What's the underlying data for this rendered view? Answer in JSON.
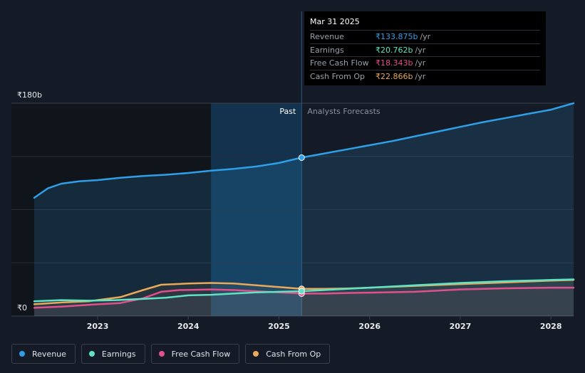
{
  "tooltip": {
    "date": "Mar 31 2025",
    "rows": [
      {
        "label": "Revenue",
        "value": "₹133.875b",
        "unit": "/yr",
        "color": "#2f9fe8"
      },
      {
        "label": "Earnings",
        "value": "₹20.762b",
        "unit": "/yr",
        "color": "#5fe3c4"
      },
      {
        "label": "Free Cash Flow",
        "value": "₹18.343b",
        "unit": "/yr",
        "color": "#e0508a"
      },
      {
        "label": "Cash From Op",
        "value": "₹22.866b",
        "unit": "/yr",
        "color": "#e8a95a"
      }
    ]
  },
  "legend": [
    {
      "label": "Revenue",
      "color": "#2f9fe8"
    },
    {
      "label": "Earnings",
      "color": "#5fe3c4"
    },
    {
      "label": "Free Cash Flow",
      "color": "#e0508a"
    },
    {
      "label": "Cash From Op",
      "color": "#e8a95a"
    }
  ],
  "chart_data": {
    "type": "line",
    "ylim": [
      0,
      180
    ],
    "y_tick_labels": [
      {
        "value": 180,
        "label": "₹180b"
      },
      {
        "value": 0,
        "label": "₹0"
      }
    ],
    "xlim": [
      2022.3,
      2028.25
    ],
    "x_tick_labels": [
      "2023",
      "2024",
      "2025",
      "2026",
      "2027",
      "2028"
    ],
    "x_tick_values": [
      2023,
      2024,
      2025,
      2026,
      2027,
      2028
    ],
    "past_label": "Past",
    "forecast_label": "Analysts Forecasts",
    "divider_x": 2025.25,
    "highlight_start_x": 2024.25,
    "grid": true,
    "series": [
      {
        "name": "Revenue",
        "color": "#2f9fe8",
        "points": [
          [
            2022.3,
            100
          ],
          [
            2022.45,
            108
          ],
          [
            2022.6,
            112
          ],
          [
            2022.8,
            114
          ],
          [
            2023.0,
            115
          ],
          [
            2023.25,
            117
          ],
          [
            2023.5,
            118.5
          ],
          [
            2023.75,
            119.5
          ],
          [
            2024.0,
            121
          ],
          [
            2024.25,
            123
          ],
          [
            2024.5,
            124.5
          ],
          [
            2024.75,
            126.5
          ],
          [
            2025.0,
            129.5
          ],
          [
            2025.25,
            134
          ],
          [
            2025.5,
            137.5
          ],
          [
            2025.75,
            141
          ],
          [
            2026.0,
            144.5
          ],
          [
            2026.25,
            148
          ],
          [
            2026.5,
            152
          ],
          [
            2026.75,
            156
          ],
          [
            2027.0,
            160
          ],
          [
            2027.25,
            164
          ],
          [
            2027.5,
            167.5
          ],
          [
            2027.75,
            171
          ],
          [
            2028.0,
            174.5
          ],
          [
            2028.25,
            180
          ]
        ]
      },
      {
        "name": "Earnings",
        "color": "#5fe3c4",
        "points": [
          [
            2022.3,
            12.5
          ],
          [
            2022.6,
            13.5
          ],
          [
            2022.9,
            13
          ],
          [
            2023.2,
            13.5
          ],
          [
            2023.5,
            14.5
          ],
          [
            2023.75,
            15.5
          ],
          [
            2024.0,
            17.5
          ],
          [
            2024.25,
            18
          ],
          [
            2024.5,
            19
          ],
          [
            2024.75,
            20
          ],
          [
            2025.0,
            20.5
          ],
          [
            2025.25,
            21
          ],
          [
            2025.5,
            22
          ],
          [
            2025.75,
            23
          ],
          [
            2026.0,
            24
          ],
          [
            2026.5,
            26
          ],
          [
            2027.0,
            28
          ],
          [
            2027.5,
            29.5
          ],
          [
            2028.0,
            30.5
          ],
          [
            2028.25,
            31
          ]
        ]
      },
      {
        "name": "Free Cash Flow",
        "color": "#e0508a",
        "points": [
          [
            2022.3,
            7
          ],
          [
            2022.6,
            8
          ],
          [
            2022.9,
            9.5
          ],
          [
            2023.25,
            11
          ],
          [
            2023.5,
            15
          ],
          [
            2023.7,
            20.5
          ],
          [
            2023.9,
            22
          ],
          [
            2024.25,
            22.5
          ],
          [
            2024.5,
            22
          ],
          [
            2024.75,
            21
          ],
          [
            2025.0,
            20
          ],
          [
            2025.25,
            19
          ],
          [
            2025.5,
            19
          ],
          [
            2025.75,
            19.5
          ],
          [
            2026.0,
            19.8
          ],
          [
            2026.5,
            20.5
          ],
          [
            2026.75,
            21.5
          ],
          [
            2027.0,
            22.5
          ],
          [
            2027.5,
            23.5
          ],
          [
            2028.0,
            24
          ],
          [
            2028.25,
            24
          ]
        ]
      },
      {
        "name": "Cash From Op",
        "color": "#e8a95a",
        "points": [
          [
            2022.3,
            10
          ],
          [
            2022.6,
            11.5
          ],
          [
            2022.9,
            12.5
          ],
          [
            2023.25,
            16
          ],
          [
            2023.5,
            22
          ],
          [
            2023.7,
            26.5
          ],
          [
            2024.0,
            27.5
          ],
          [
            2024.25,
            28
          ],
          [
            2024.5,
            27.5
          ],
          [
            2024.75,
            26
          ],
          [
            2025.0,
            24.5
          ],
          [
            2025.25,
            23
          ],
          [
            2025.5,
            23
          ],
          [
            2025.75,
            23.3
          ],
          [
            2026.0,
            24
          ],
          [
            2026.5,
            25.5
          ],
          [
            2027.0,
            27
          ],
          [
            2027.5,
            28.5
          ],
          [
            2028.0,
            30
          ],
          [
            2028.25,
            30.5
          ]
        ]
      }
    ]
  }
}
